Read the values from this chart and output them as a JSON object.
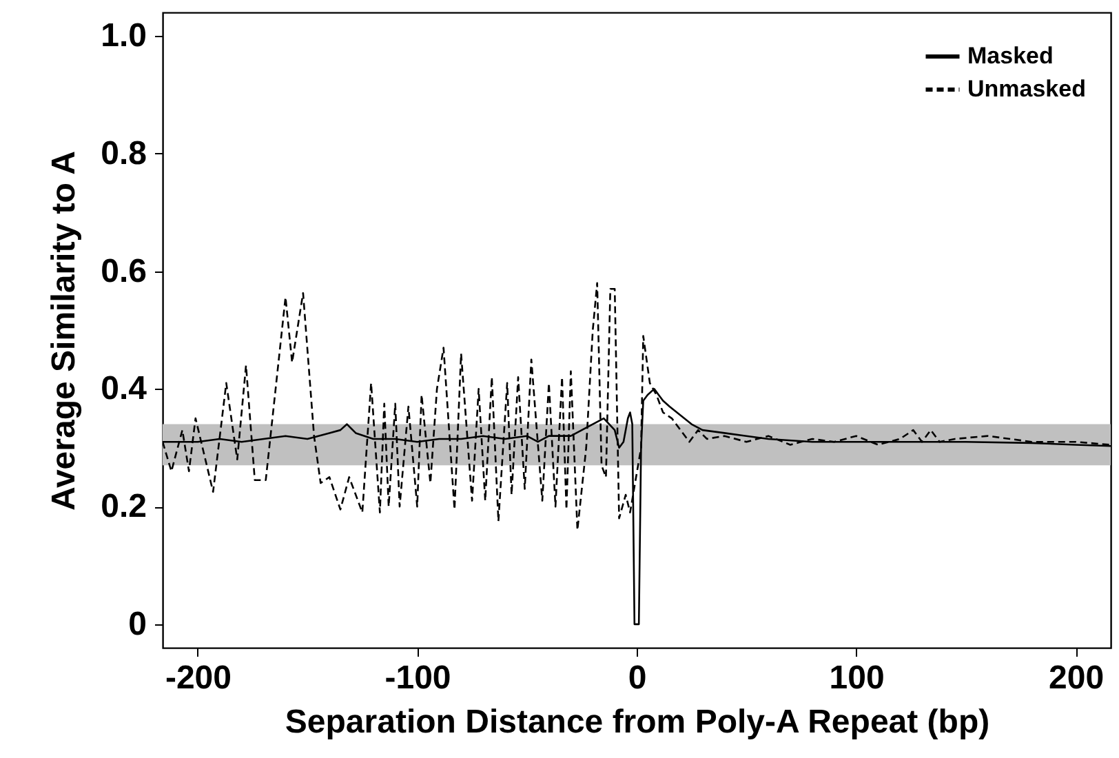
{
  "chart_data": {
    "type": "line",
    "xlabel": "Separation Distance from Poly-A Repeat (bp)",
    "ylabel": "Average Similarity to A",
    "xlim": [
      -216,
      216
    ],
    "xticks": [
      -200,
      -100,
      0,
      100,
      200
    ],
    "ylim": [
      -0.04,
      1.04
    ],
    "yticks": [
      0,
      0.2,
      0.4,
      0.6,
      0.8,
      {
        "value": 1,
        "label": "1.0"
      }
    ],
    "grid": false,
    "legend": "top right",
    "marker": "none",
    "bands": [
      {
        "axis": "y",
        "from": 0.27,
        "to": 0.34,
        "color": "#c0c0c0"
      }
    ],
    "series": [
      {
        "name": "Masked",
        "color": "#000000",
        "line_style": "solid",
        "x": [
          -216,
          -200,
          -190,
          -180,
          -170,
          -160,
          -150,
          -140,
          -135,
          -132,
          -128,
          -120,
          -110,
          -100,
          -90,
          -80,
          -70,
          -60,
          -50,
          -45,
          -40,
          -30,
          -20,
          -15,
          -10,
          -8,
          -6,
          -4,
          -3,
          -2,
          -1,
          1,
          2,
          3,
          5,
          8,
          10,
          12,
          15,
          20,
          25,
          30,
          40,
          50,
          60,
          80,
          100,
          120,
          150,
          180,
          200,
          216
        ],
        "values": [
          0.31,
          0.31,
          0.315,
          0.31,
          0.315,
          0.32,
          0.315,
          0.325,
          0.33,
          0.34,
          0.325,
          0.315,
          0.315,
          0.31,
          0.315,
          0.315,
          0.32,
          0.315,
          0.32,
          0.31,
          0.32,
          0.32,
          0.34,
          0.35,
          0.33,
          0.3,
          0.31,
          0.35,
          0.36,
          0.34,
          0,
          0,
          0.3,
          0.38,
          0.39,
          0.4,
          0.39,
          0.38,
          0.37,
          0.355,
          0.34,
          0.33,
          0.325,
          0.32,
          0.315,
          0.31,
          0.31,
          0.31,
          0.31,
          0.308,
          0.305,
          0.303
        ]
      },
      {
        "name": "Unmasked",
        "color": "#000000",
        "line_style": "dashed",
        "x": [
          -216,
          -212,
          -207,
          -204,
          -201,
          -193,
          -187,
          -182,
          -178,
          -174,
          -169,
          -160,
          -157,
          -152,
          -147,
          -144,
          -140,
          -135,
          -131,
          -125,
          -121,
          -117,
          -115,
          -113,
          -110,
          -108,
          -104,
          -100,
          -98,
          -94,
          -91,
          -88,
          -83,
          -80,
          -75,
          -72,
          -69,
          -66,
          -63,
          -59,
          -57,
          -54,
          -51,
          -48,
          -43,
          -40,
          -37,
          -34,
          -32,
          -30,
          -27,
          -23,
          -20,
          -18,
          -16,
          -14,
          -12,
          -10,
          -8,
          -5,
          -3,
          2,
          3,
          6,
          9,
          12,
          16,
          20,
          24,
          28,
          32,
          40,
          50,
          60,
          70,
          80,
          90,
          100,
          110,
          120,
          126,
          130,
          134,
          138,
          145,
          160,
          180,
          200,
          216
        ],
        "values": [
          0.31,
          0.26,
          0.33,
          0.26,
          0.35,
          0.225,
          0.41,
          0.28,
          0.44,
          0.245,
          0.245,
          0.556,
          0.445,
          0.563,
          0.32,
          0.24,
          0.25,
          0.195,
          0.25,
          0.19,
          0.41,
          0.19,
          0.375,
          0.2,
          0.375,
          0.2,
          0.37,
          0.2,
          0.39,
          0.24,
          0.4,
          0.47,
          0.195,
          0.46,
          0.21,
          0.4,
          0.21,
          0.42,
          0.175,
          0.41,
          0.22,
          0.42,
          0.23,
          0.45,
          0.21,
          0.41,
          0.2,
          0.42,
          0.195,
          0.43,
          0.16,
          0.3,
          0.5,
          0.58,
          0.27,
          0.25,
          0.57,
          0.57,
          0.18,
          0.22,
          0.19,
          0.3,
          0.49,
          0.41,
          0.39,
          0.36,
          0.35,
          0.33,
          0.31,
          0.33,
          0.315,
          0.32,
          0.31,
          0.32,
          0.305,
          0.315,
          0.31,
          0.32,
          0.305,
          0.315,
          0.33,
          0.31,
          0.33,
          0.31,
          0.315,
          0.32,
          0.31,
          0.31,
          0.305
        ]
      }
    ]
  }
}
